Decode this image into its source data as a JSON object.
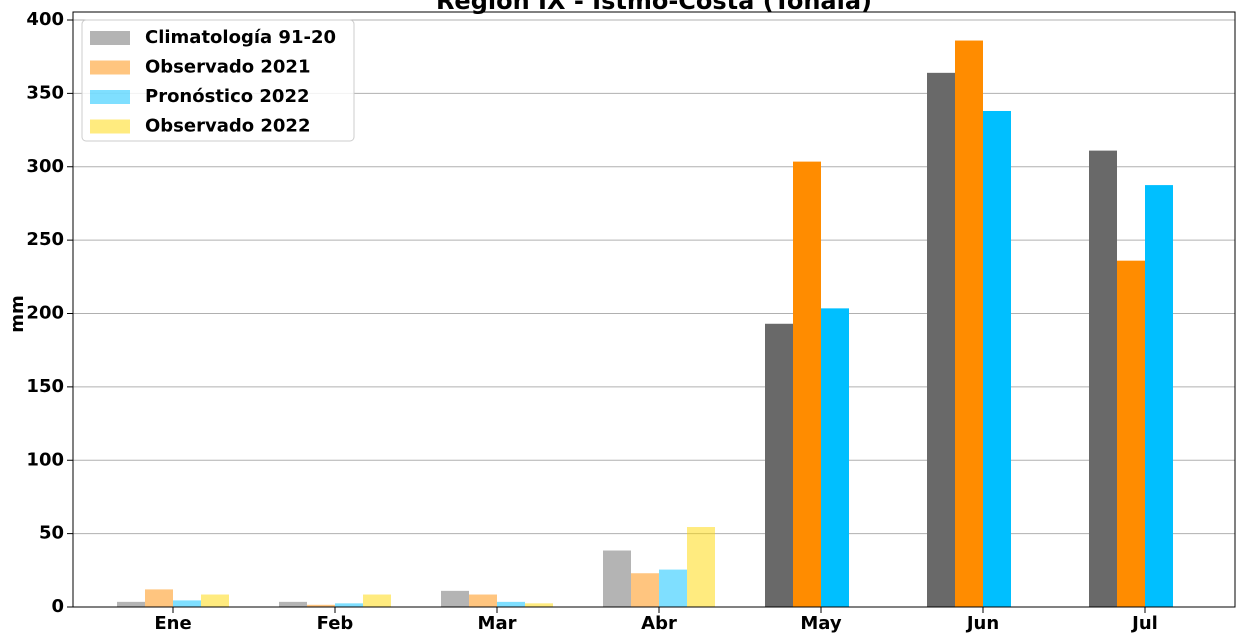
{
  "chart_data": {
    "type": "bar",
    "title": "Región IX - Istmo-Costa (Tonalá)",
    "y_label": "mm",
    "categories": [
      "Ene",
      "Feb",
      "Mar",
      "Abr",
      "May",
      "Jun",
      "Jul"
    ],
    "series": [
      {
        "name": "Climatología 91-20",
        "color": "#696969",
        "values": [
          3.5,
          3.5,
          11,
          38.5,
          193,
          364,
          311
        ]
      },
      {
        "name": "Observado 2021",
        "color": "#ff8c00",
        "values": [
          12,
          1.5,
          8.5,
          23,
          303.5,
          386,
          236
        ]
      },
      {
        "name": "Pronóstico 2022",
        "color": "#00bfff",
        "values": [
          4.5,
          2.5,
          3.5,
          25.5,
          203.5,
          338,
          287.5
        ]
      },
      {
        "name": "Observado 2022",
        "color": "#ffd700",
        "values": [
          8.5,
          8.5,
          2.5,
          54.5,
          null,
          null,
          null
        ]
      }
    ],
    "category_alpha": [
      0.5,
      0.5,
      0.5,
      0.5,
      1,
      1,
      1
    ],
    "legend_alpha": 0.5,
    "ylim": [
      0,
      400
    ],
    "yticks": [
      0,
      50,
      100,
      150,
      200,
      250,
      300,
      350,
      400
    ],
    "grid": true,
    "legend": "upper left"
  }
}
